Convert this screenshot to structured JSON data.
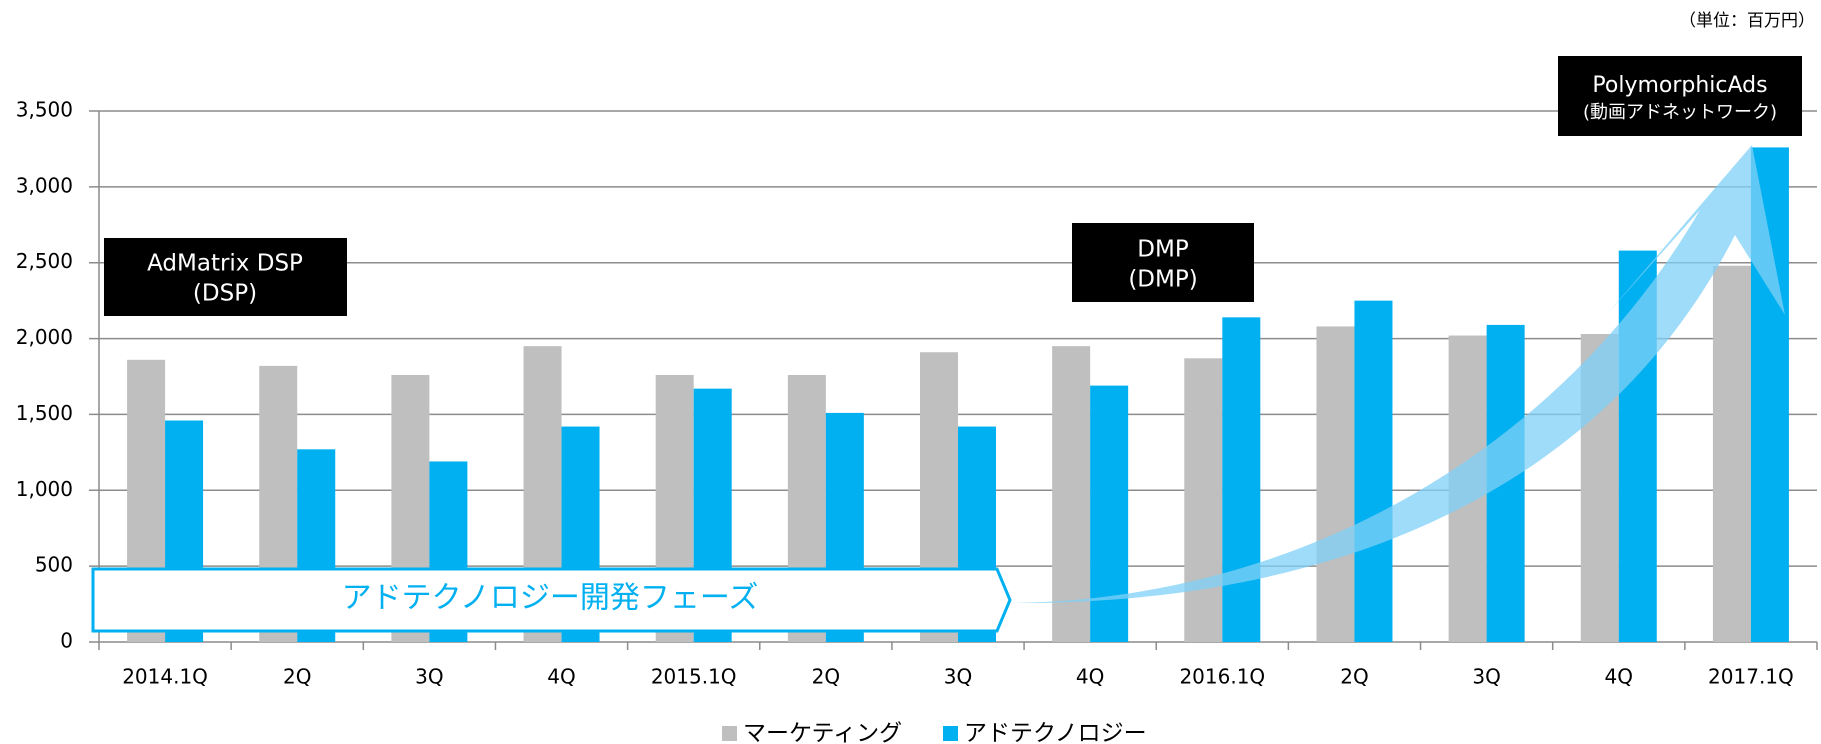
{
  "chart_data": {
    "type": "bar",
    "unit_note": "（単位：百万円）",
    "categories": [
      "2014.1Q",
      "2Q",
      "3Q",
      "4Q",
      "2015.1Q",
      "2Q",
      "3Q",
      "4Q",
      "2016.1Q",
      "2Q",
      "3Q",
      "4Q",
      "2017.1Q"
    ],
    "series": [
      {
        "name": "マーケティング",
        "color": "#bfbfbf",
        "values": [
          1860,
          1820,
          1760,
          1950,
          1760,
          1760,
          1910,
          1950,
          1870,
          2080,
          2020,
          2030,
          2480
        ]
      },
      {
        "name": "アドテクノロジー",
        "color": "#00b0f0",
        "values": [
          1460,
          1270,
          1190,
          1420,
          1670,
          1510,
          1420,
          1690,
          2140,
          2250,
          2090,
          2580,
          3260
        ]
      }
    ],
    "ylim": [
      0,
      3500
    ],
    "yticks": [
      0,
      500,
      {
        "value": 1000,
        "label": "1,000"
      },
      {
        "value": 1500,
        "label": "1,500"
      },
      {
        "value": 2000,
        "label": "2,000"
      },
      {
        "value": 2500,
        "label": "2,500"
      },
      {
        "value": 3000,
        "label": "3,000"
      },
      {
        "value": 3500,
        "label": "3,500"
      }
    ],
    "grid": true,
    "annotations": {
      "admatrix": [
        "AdMatrix DSP",
        "(DSP)"
      ],
      "dmp": [
        "DMP",
        "(DMP)"
      ],
      "polymorphic": [
        "PolymorphicAds",
        "(動画アドネットワーク)"
      ],
      "phase": "アドテクノロジー開発フェーズ"
    }
  }
}
